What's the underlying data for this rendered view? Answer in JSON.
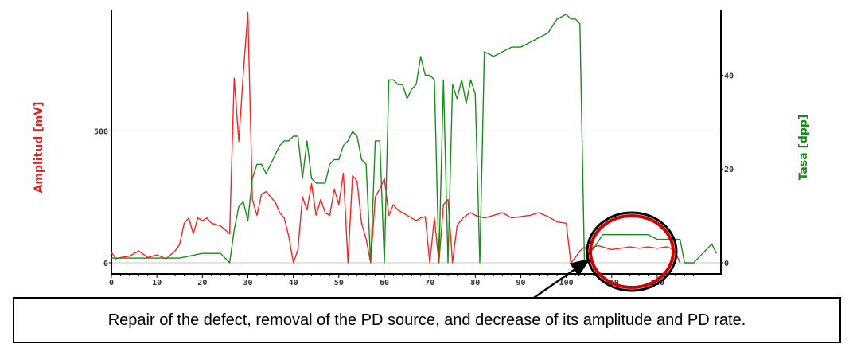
{
  "chart_data": {
    "type": "line",
    "xlim": [
      0,
      134
    ],
    "ylim_left": [
      0,
      960
    ],
    "ylim_right": [
      0,
      54
    ],
    "x_ticks": [
      "0",
      "10",
      "20",
      "30",
      "40",
      "50",
      "60",
      "70",
      "80",
      "90",
      "100",
      "110",
      "120"
    ],
    "y_ticks_left": [
      "0",
      "500"
    ],
    "y_ticks_right": [
      "0",
      "20",
      "40"
    ],
    "ylabel_left": "Amplitud [mV]",
    "ylabel_right": "Tasa [dpp]",
    "grid": "horizontal at 500 mV",
    "colors": {
      "amplitude": "#ff2020",
      "rate": "#1a8c1a"
    },
    "series": [
      {
        "axis": "left",
        "x": [
          0,
          1,
          2,
          4,
          6,
          8,
          10,
          12,
          14,
          15,
          16,
          17,
          18,
          19,
          20,
          21,
          22,
          24,
          26,
          27,
          28,
          29,
          30,
          31,
          32,
          33,
          34,
          35,
          36,
          37,
          38,
          39,
          40,
          41,
          42,
          43,
          44,
          45,
          46,
          47,
          48,
          49,
          50,
          51,
          52,
          53,
          54,
          55,
          56,
          57,
          58,
          59,
          60,
          61,
          62,
          63,
          64,
          65,
          66,
          67,
          68,
          69,
          70,
          71,
          72,
          73,
          74,
          75,
          76,
          77,
          78,
          79,
          80,
          82,
          84,
          86,
          88,
          90,
          92,
          94,
          96,
          98,
          100,
          101,
          102,
          103,
          104,
          105,
          106,
          107,
          108,
          109,
          110,
          112,
          114,
          116,
          118,
          120,
          122,
          123,
          124,
          125
        ],
        "values": [
          40,
          15,
          20,
          25,
          45,
          20,
          30,
          15,
          45,
          70,
          150,
          170,
          110,
          170,
          160,
          170,
          150,
          140,
          110,
          700,
          460,
          720,
          950,
          240,
          180,
          260,
          270,
          250,
          230,
          190,
          170,
          100,
          0,
          50,
          250,
          200,
          300,
          180,
          240,
          190,
          180,
          280,
          220,
          340,
          0,
          330,
          310,
          150,
          90,
          0,
          250,
          280,
          320,
          180,
          220,
          200,
          190,
          180,
          170,
          160,
          170,
          175,
          0,
          170,
          0,
          220,
          240,
          0,
          140,
          165,
          180,
          190,
          180,
          170,
          180,
          190,
          170,
          175,
          180,
          190,
          175,
          155,
          150,
          0,
          20,
          45,
          60,
          35,
          60,
          65,
          60,
          55,
          50,
          55,
          60,
          55,
          60,
          55,
          60,
          55,
          40,
          0
        ]
      },
      {
        "axis": "right",
        "x": [
          0,
          5,
          10,
          15,
          20,
          22,
          24,
          25,
          26,
          27,
          28,
          29,
          30,
          31,
          32,
          33,
          34,
          35,
          36,
          37,
          38,
          39,
          40,
          41,
          42,
          43,
          44,
          45,
          46,
          47,
          48,
          49,
          50,
          51,
          52,
          53,
          54,
          55,
          56,
          57,
          58,
          59,
          60,
          61,
          62,
          63,
          64,
          65,
          66,
          67,
          68,
          69,
          70,
          71,
          72,
          73,
          74,
          75,
          76,
          77,
          78,
          79,
          80,
          81,
          82,
          84,
          86,
          88,
          90,
          92,
          94,
          96,
          98,
          100,
          101,
          102,
          103,
          104,
          105,
          106,
          108,
          110,
          112,
          114,
          116,
          118,
          120,
          122,
          123,
          124,
          125,
          126,
          128,
          130,
          131,
          132,
          133
        ],
        "values": [
          1,
          1,
          1,
          1,
          2,
          2,
          2,
          1,
          0,
          7,
          12,
          13,
          9,
          18,
          21,
          21,
          19,
          21,
          23,
          25,
          26,
          26,
          27,
          27,
          18,
          26,
          18,
          17,
          17,
          17,
          21,
          22,
          22,
          25,
          26,
          28,
          27,
          22,
          21,
          0,
          26,
          26,
          0,
          39,
          39,
          38,
          38,
          35,
          37,
          38,
          44,
          40,
          40,
          39,
          0,
          39,
          0,
          38,
          35,
          39,
          34,
          39,
          36,
          0,
          45,
          44,
          45,
          46,
          46,
          47,
          48,
          49,
          52,
          53,
          52,
          52,
          51,
          0,
          2,
          3,
          6,
          6,
          6,
          6,
          6,
          6,
          5,
          5,
          5,
          5,
          5,
          0,
          0,
          2,
          3,
          4,
          2
        ]
      }
    ],
    "annotation": "Repair of the defect, removal of the PD source, and decrease of its amplitude and PD rate."
  }
}
